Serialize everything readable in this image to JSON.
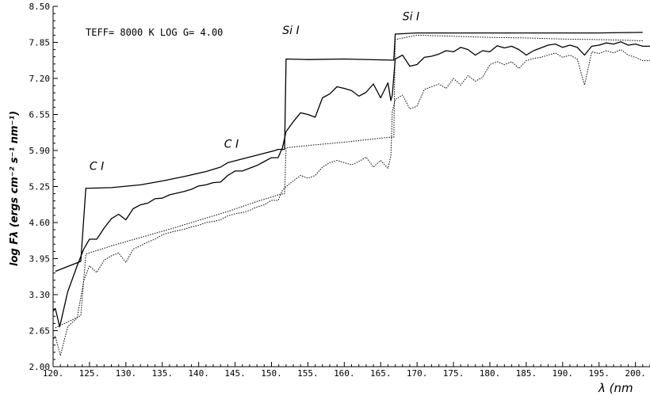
{
  "chart_data": {
    "type": "line",
    "model_label": "TEFF=  8000 K  LOG G=  4.00",
    "xlabel": "λ  (nm",
    "ylabel": "log Fλ (ergs cm⁻² s⁻¹ nm⁻¹)",
    "xlim": [
      120,
      202
    ],
    "ylim": [
      2.0,
      8.5
    ],
    "x_ticks": [
      "120.",
      "125.",
      "130.",
      "135.",
      "140.",
      "145.",
      "150.",
      "155.",
      "160.",
      "165.",
      "170.",
      "175.",
      "180.",
      "185.",
      "190.",
      "195.",
      "200."
    ],
    "y_ticks": [
      "2.00",
      "2.65",
      "3.30",
      "3.95",
      "4.60",
      "5.25",
      "5.90",
      "6.55",
      "7.20",
      "7.85",
      "8.50"
    ],
    "annotations": [
      {
        "text": "C I",
        "x": 125.0,
        "y": 5.55
      },
      {
        "text": "C I",
        "x": 143.5,
        "y": 5.95
      },
      {
        "text": "Si I",
        "x": 151.5,
        "y": 8.0
      },
      {
        "text": "Si I",
        "x": 168.0,
        "y": 8.25
      }
    ],
    "series": [
      {
        "style": "solid",
        "x": [
          120.3,
          123.8,
          124.5,
          125,
          128,
          132,
          135,
          138,
          141,
          143,
          144,
          150.5,
          150.9,
          151.8,
          152.0,
          155,
          160,
          166.3,
          166.4,
          166.8,
          167.0,
          170,
          175,
          180,
          185,
          190,
          195,
          201
        ],
        "y": [
          3.72,
          3.9,
          5.22,
          5.22,
          5.23,
          5.28,
          5.35,
          5.43,
          5.52,
          5.6,
          5.68,
          5.9,
          5.92,
          5.92,
          7.55,
          7.54,
          7.55,
          7.53,
          7.53,
          7.53,
          8.0,
          8.02,
          8.02,
          8.02,
          8.02,
          8.02,
          8.02,
          8.03
        ]
      },
      {
        "style": "solid",
        "x": [
          120.0,
          120.3,
          120.9,
          122.0,
          123.3,
          124.2,
          125.0,
          126.0,
          127.0,
          128.0,
          129.0,
          130.0,
          131.0,
          132.0,
          133.0,
          134.0,
          135.0,
          136.0,
          137.0,
          138.0,
          139.0,
          140.0,
          141.0,
          142.0,
          143.0,
          144.0,
          145.0,
          146.0,
          147.0,
          148.0,
          149.0,
          150.0,
          150.9,
          151.5,
          152.0,
          153.0,
          154.0,
          155.0,
          156.0,
          157.0,
          158.0,
          159.0,
          160.0,
          161.0,
          162.0,
          163.0,
          164.0,
          165.0,
          166.0,
          166.4,
          166.6,
          167.0,
          168.0,
          169.0,
          170.0,
          171.0,
          172.0,
          173.0,
          174.0,
          175.0,
          176.0,
          177.0,
          178.0,
          179.0,
          180.0,
          181.0,
          182.0,
          183.0,
          184.0,
          185.0,
          186.0,
          187.0,
          188.0,
          189.0,
          190.0,
          191.0,
          192.0,
          193.0,
          194.0,
          195.0,
          196.0,
          197.0,
          198.0,
          199.0,
          200.0,
          201.0,
          202.0
        ],
        "y": [
          3.0,
          3.05,
          2.72,
          3.35,
          3.82,
          4.12,
          4.3,
          4.3,
          4.5,
          4.67,
          4.75,
          4.65,
          4.85,
          4.92,
          4.95,
          5.03,
          5.04,
          5.1,
          5.13,
          5.16,
          5.2,
          5.26,
          5.28,
          5.32,
          5.33,
          5.45,
          5.53,
          5.53,
          5.58,
          5.63,
          5.7,
          5.77,
          5.77,
          5.95,
          6.24,
          6.42,
          6.58,
          6.55,
          6.5,
          6.85,
          6.92,
          7.05,
          7.02,
          6.98,
          6.88,
          6.95,
          7.1,
          6.85,
          7.12,
          6.8,
          6.9,
          7.55,
          7.62,
          7.42,
          7.45,
          7.58,
          7.6,
          7.64,
          7.7,
          7.68,
          7.76,
          7.72,
          7.62,
          7.7,
          7.68,
          7.79,
          7.75,
          7.78,
          7.72,
          7.62,
          7.7,
          7.75,
          7.8,
          7.82,
          7.76,
          7.8,
          7.76,
          7.62,
          7.78,
          7.8,
          7.84,
          7.82,
          7.86,
          7.8,
          7.82,
          7.78,
          7.78
        ]
      },
      {
        "style": "dotted",
        "x": [
          120.3,
          123.8,
          124.5,
          128,
          132,
          136,
          140,
          144,
          148,
          150.5,
          150.9,
          151.8,
          152.0,
          155,
          160,
          166.3,
          166.4,
          166.8,
          167.0,
          170,
          175,
          180,
          185,
          190,
          195,
          201
        ],
        "y": [
          2.7,
          2.92,
          4.03,
          4.18,
          4.33,
          4.48,
          4.64,
          4.8,
          4.98,
          5.08,
          5.1,
          5.12,
          5.95,
          5.99,
          6.05,
          6.14,
          6.14,
          6.14,
          7.9,
          7.98,
          7.96,
          7.94,
          7.93,
          7.91,
          7.9,
          7.88
        ]
      },
      {
        "style": "dotted",
        "x": [
          120.0,
          120.3,
          121.0,
          122.0,
          123.3,
          124.2,
          125.0,
          126.0,
          127.0,
          128.0,
          129.0,
          130.0,
          131.0,
          132.0,
          133.0,
          134.0,
          135.0,
          136.0,
          137.0,
          138.0,
          139.0,
          140.0,
          141.0,
          142.0,
          143.0,
          144.0,
          145.0,
          146.0,
          147.0,
          148.0,
          149.0,
          150.0,
          150.9,
          151.5,
          152.0,
          153.0,
          154.0,
          155.0,
          156.0,
          157.0,
          158.0,
          159.0,
          160.0,
          161.0,
          162.0,
          163.0,
          164.0,
          165.0,
          166.0,
          166.4,
          166.6,
          167.0,
          168.0,
          169.0,
          170.0,
          171.0,
          172.0,
          173.0,
          174.0,
          175.0,
          176.0,
          177.0,
          178.0,
          179.0,
          180.0,
          181.0,
          182.0,
          183.0,
          184.0,
          185.0,
          186.0,
          187.0,
          188.0,
          189.0,
          190.0,
          191.0,
          192.0,
          193.0,
          194.0,
          195.0,
          196.0,
          197.0,
          198.0,
          199.0,
          200.0,
          201.0,
          202.0
        ],
        "y": [
          2.5,
          2.55,
          2.2,
          2.72,
          2.88,
          3.55,
          3.82,
          3.7,
          3.92,
          4.0,
          4.05,
          3.88,
          4.12,
          4.18,
          4.25,
          4.3,
          4.38,
          4.42,
          4.45,
          4.48,
          4.52,
          4.55,
          4.6,
          4.62,
          4.65,
          4.72,
          4.76,
          4.78,
          4.82,
          4.88,
          4.92,
          5.0,
          5.0,
          5.18,
          5.25,
          5.35,
          5.45,
          5.4,
          5.45,
          5.6,
          5.68,
          5.72,
          5.68,
          5.64,
          5.7,
          5.78,
          5.6,
          5.72,
          5.58,
          5.8,
          6.6,
          6.82,
          6.9,
          6.65,
          6.7,
          7.0,
          7.05,
          7.1,
          7.02,
          7.2,
          7.08,
          7.25,
          7.15,
          7.22,
          7.45,
          7.5,
          7.45,
          7.5,
          7.38,
          7.52,
          7.56,
          7.58,
          7.62,
          7.66,
          7.58,
          7.62,
          7.55,
          7.08,
          7.68,
          7.65,
          7.7,
          7.66,
          7.72,
          7.62,
          7.58,
          7.52,
          7.52
        ]
      }
    ]
  }
}
